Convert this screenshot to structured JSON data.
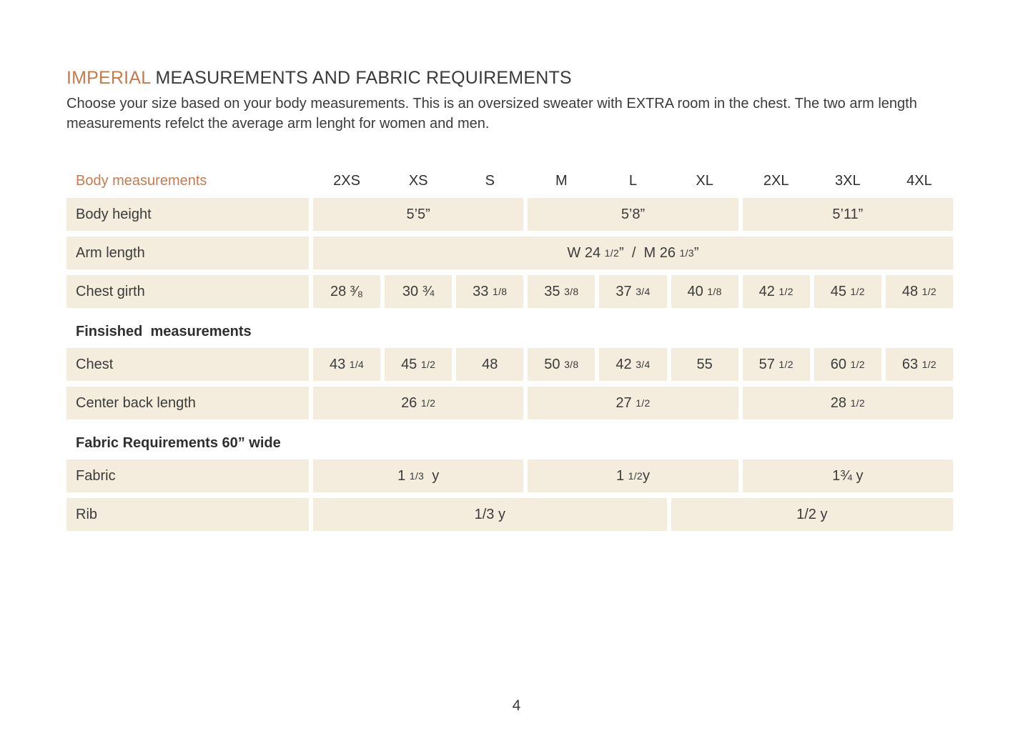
{
  "colors": {
    "accent": "#c87a4f",
    "cell_bg": "#f4ecdc",
    "text": "#3b3b3b"
  },
  "header": {
    "title_highlight": "IMPERIAL",
    "title_rest": " MEASUREMENTS AND FABRIC REQUIREMENTS",
    "intro": "Choose your size based on your body measurements. This is an oversized sweater with EXTRA room in the chest. The two arm length measurements refelct the average arm lenght for women and men."
  },
  "table": {
    "label_header": "Body measurements",
    "sizes": [
      "2XS",
      "XS",
      "S",
      "M",
      "L",
      "XL",
      "2XL",
      "3XL",
      "4XL"
    ],
    "rows": [
      {
        "type": "data",
        "label": "Body height",
        "cells": [
          {
            "span": 3,
            "v": "5’5”"
          },
          {
            "span": 3,
            "v": "5’8”"
          },
          {
            "span": 3,
            "v": "5’11”"
          }
        ]
      },
      {
        "type": "data",
        "label": "Arm length",
        "cells": [
          {
            "span": 9,
            "v": "W 24 ~1/2~”  /  M 26 ~1/3~”"
          }
        ]
      },
      {
        "type": "data",
        "label": "Chest girth",
        "cells": [
          {
            "span": 1,
            "v": "28 ³⁄₈"
          },
          {
            "span": 1,
            "v": "30 ¾"
          },
          {
            "span": 1,
            "v": "33 ~1/8~"
          },
          {
            "span": 1,
            "v": "35 ~3/8~"
          },
          {
            "span": 1,
            "v": "37 ~3/4~"
          },
          {
            "span": 1,
            "v": "40 ~1/8~"
          },
          {
            "span": 1,
            "v": "42 ~1/2~"
          },
          {
            "span": 1,
            "v": "45 ~1/2~"
          },
          {
            "span": 1,
            "v": "48 ~1/2~"
          }
        ]
      },
      {
        "type": "section",
        "label": "Finsished  measurements"
      },
      {
        "type": "data",
        "label": "Chest",
        "cells": [
          {
            "span": 1,
            "v": "43 ~1/4~"
          },
          {
            "span": 1,
            "v": "45 ~1/2~"
          },
          {
            "span": 1,
            "v": "48"
          },
          {
            "span": 1,
            "v": "50 ~3/8~"
          },
          {
            "span": 1,
            "v": "42 ~3/4~"
          },
          {
            "span": 1,
            "v": "55"
          },
          {
            "span": 1,
            "v": "57 ~1/2~"
          },
          {
            "span": 1,
            "v": "60 ~1/2~"
          },
          {
            "span": 1,
            "v": "63 ~1/2~"
          }
        ]
      },
      {
        "type": "data",
        "label": "Center back length",
        "cells": [
          {
            "span": 3,
            "v": "26 ~1/2~"
          },
          {
            "span": 3,
            "v": "27 ~1/2~"
          },
          {
            "span": 3,
            "v": "28 ~1/2~"
          }
        ]
      },
      {
        "type": "section",
        "label": "Fabric Requirements 60” wide"
      },
      {
        "type": "data",
        "label": "Fabric",
        "cells": [
          {
            "span": 3,
            "v": "1 ~1/3~  y"
          },
          {
            "span": 3,
            "v": "1 ~1/2~y"
          },
          {
            "span": 3,
            "v": "1¾ y"
          }
        ]
      },
      {
        "type": "data",
        "label": "Rib",
        "cells": [
          {
            "span": 5,
            "v": "1/3 y"
          },
          {
            "span": 4,
            "v": "1/2 y"
          }
        ]
      }
    ]
  },
  "page": {
    "number": "4"
  }
}
